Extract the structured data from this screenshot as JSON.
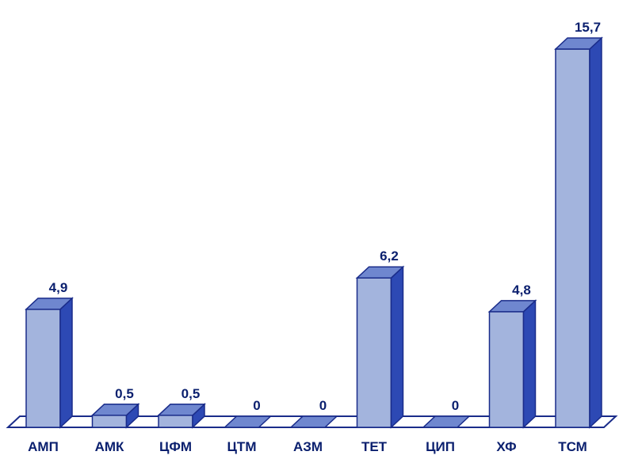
{
  "chart_data": {
    "type": "bar",
    "categories": [
      "АМП",
      "АМК",
      "ЦФМ",
      "ЦТМ",
      "АЗМ",
      "ТЕТ",
      "ЦИП",
      "ХФ",
      "ТСМ"
    ],
    "values": [
      4.9,
      0.5,
      0.5,
      0,
      0,
      6.2,
      0,
      4.8,
      15.7
    ],
    "value_labels": [
      "4,9",
      "0,5",
      "0,5",
      "0",
      "0",
      "6,2",
      "0",
      "4,8",
      "15,7"
    ],
    "title": "",
    "xlabel": "",
    "ylabel": "",
    "ylim": [
      0,
      15.7
    ],
    "grid": false,
    "legend": "none",
    "style": "3d-bar",
    "colors": {
      "front": "#a3b4dd",
      "top": "#6f87cf",
      "side": "#2d49b4",
      "outline": "#1a2c8a",
      "floor": "#ffffff",
      "label": "#0a1f6e"
    }
  }
}
